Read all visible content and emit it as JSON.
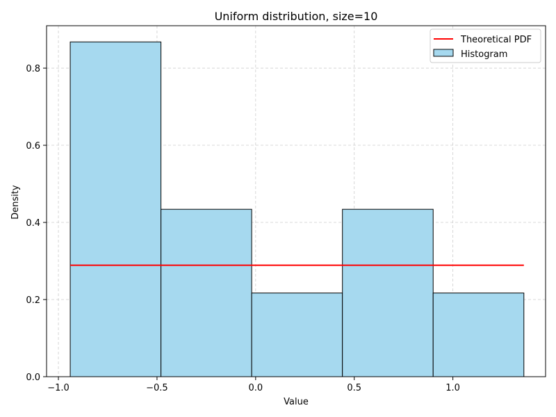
{
  "chart_data": {
    "type": "bar",
    "title": "Uniform distribution, size=10",
    "xlabel": "Value",
    "ylabel": "Density",
    "xlim": [
      -1.06,
      1.47
    ],
    "ylim": [
      0.0,
      0.91
    ],
    "xticks": [
      -1.0,
      -0.5,
      0.0,
      0.5,
      1.0
    ],
    "xtick_labels": [
      "−1.0",
      "−0.5",
      "0.0",
      "0.5",
      "1.0"
    ],
    "yticks": [
      0.0,
      0.2,
      0.4,
      0.6,
      0.8
    ],
    "ytick_labels": [
      "0.0",
      "0.2",
      "0.4",
      "0.6",
      "0.8"
    ],
    "grid": true,
    "legend_position": "top-right",
    "histogram": {
      "name": "Histogram",
      "color": "#a6d9ef",
      "edgecolor": "#000000",
      "bin_edges": [
        -0.94,
        -0.48,
        -0.02,
        0.44,
        0.9,
        1.36
      ],
      "values": [
        0.868,
        0.434,
        0.217,
        0.434,
        0.217
      ]
    },
    "pdf_line": {
      "name": "Theoretical PDF",
      "color": "#ff0000",
      "x": [
        -0.94,
        1.36
      ],
      "y": [
        0.289,
        0.289
      ]
    }
  }
}
